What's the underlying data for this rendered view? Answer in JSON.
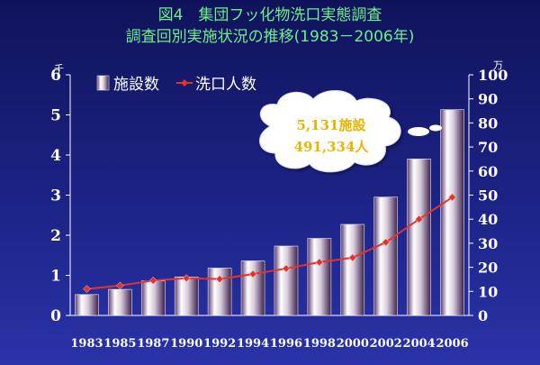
{
  "slide": {
    "title_line1": "図4　集団フッ化物洗口実態調査",
    "title_line2": "調査回別実施状況の推移(1983－2006年)"
  },
  "chart_data": {
    "type": "bar",
    "categories": [
      "1983",
      "1985",
      "1987",
      "1990",
      "1992",
      "1994",
      "1996",
      "1998",
      "2000",
      "2002",
      "2004",
      "2006"
    ],
    "series": [
      {
        "name": "施設数",
        "type": "bar",
        "axis": "left",
        "color": "#d8d0e0",
        "values": [
          0.52,
          0.65,
          0.86,
          0.96,
          1.18,
          1.36,
          1.73,
          1.92,
          2.27,
          2.95,
          3.9,
          5.13
        ]
      },
      {
        "name": "洗口人数",
        "type": "line",
        "axis": "right",
        "color": "#e0342e",
        "values": [
          11,
          12.4,
          14.5,
          15.5,
          15.1,
          17.2,
          19.5,
          22.1,
          24,
          30.4,
          40,
          49.1
        ]
      }
    ],
    "left_axis": {
      "unit": "千",
      "ylim": [
        0,
        6
      ],
      "ticks": [
        "0",
        "1",
        "2",
        "3",
        "4",
        "5",
        "6"
      ]
    },
    "right_axis": {
      "unit": "万",
      "ylim": [
        0,
        100
      ],
      "ticks": [
        "0",
        "10",
        "20",
        "30",
        "40",
        "50",
        "60",
        "70",
        "80",
        "90",
        "100"
      ]
    },
    "legend_position": "top-left",
    "callout": {
      "line1": "5,131施設",
      "line2": "491,334人"
    }
  }
}
